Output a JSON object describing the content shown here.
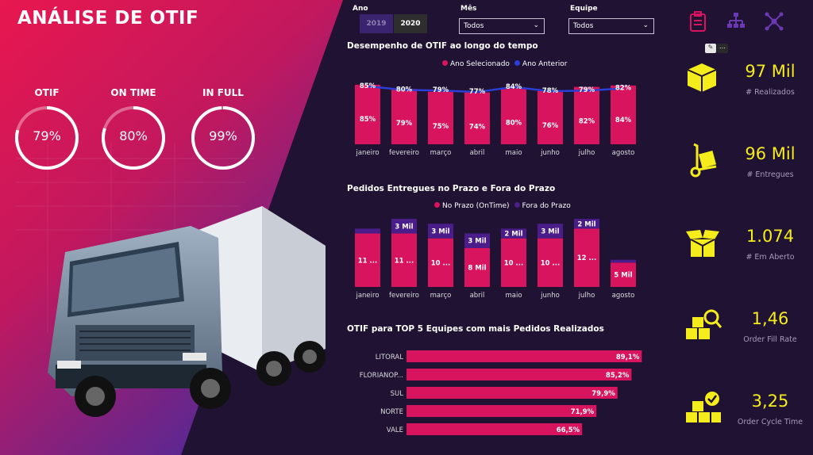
{
  "title": "ANÁLISE DE OTIF",
  "gauges": [
    {
      "label": "OTIF",
      "value": "79%",
      "pct": 0.79
    },
    {
      "label": "ON TIME",
      "value": "80%",
      "pct": 0.8
    },
    {
      "label": "IN FULL",
      "value": "99%",
      "pct": 0.99
    }
  ],
  "filters": {
    "ano_label": "Ano",
    "years": [
      "2019",
      "2020"
    ],
    "selected_year": "2020",
    "mes_label": "Mês",
    "mes_value": "Todos",
    "equipe_label": "Equipe",
    "equipe_value": "Todos"
  },
  "chart1": {
    "title": "Desempenho de OTIF ao longo do tempo",
    "legend": [
      "Ano Selecionado",
      "Ano Anterior"
    ]
  },
  "chart2": {
    "title": "Pedidos Entregues no Prazo e Fora do Prazo",
    "legend": [
      "No Prazo (OnTime)",
      "Fora do Prazo"
    ]
  },
  "chart3": {
    "title": "OTIF para TOP 5 Equipes com mais Pedidos Realizados"
  },
  "chart_data": [
    {
      "type": "bar",
      "title": "Desempenho de OTIF ao longo do tempo",
      "categories": [
        "janeiro",
        "fevereiro",
        "março",
        "abril",
        "maio",
        "junho",
        "julho",
        "agosto"
      ],
      "series": [
        {
          "name": "Ano Selecionado",
          "values": [
            85,
            79,
            75,
            74,
            80,
            76,
            82,
            84
          ],
          "labels": [
            "85%",
            "79%",
            "75%",
            "74%",
            "80%",
            "76%",
            "82%",
            "84%"
          ],
          "color": "#d8145e"
        },
        {
          "name": "Ano Anterior",
          "type": "line",
          "values": [
            85,
            80,
            79,
            77,
            84,
            78,
            79,
            82
          ],
          "labels": [
            "85%",
            "80%",
            "79%",
            "77%",
            "84%",
            "78%",
            "79%",
            "82%"
          ],
          "color": "#2b3fd6"
        }
      ],
      "ylim": [
        0,
        100
      ]
    },
    {
      "type": "bar",
      "title": "Pedidos Entregues no Prazo e Fora do Prazo",
      "stacked": true,
      "categories": [
        "janeiro",
        "fevereiro",
        "março",
        "abril",
        "maio",
        "junho",
        "julho",
        "agosto"
      ],
      "series": [
        {
          "name": "No Prazo (OnTime)",
          "values": [
            11,
            11,
            10,
            8,
            10,
            10,
            12,
            5
          ],
          "labels": [
            "11 ...",
            "11 ...",
            "10 ...",
            "8 Mil",
            "10 ...",
            "10 ...",
            "12 ...",
            "5 Mil"
          ],
          "color": "#d8145e"
        },
        {
          "name": "Fora do Prazo",
          "values": [
            1,
            3,
            3,
            3,
            2,
            3,
            2,
            0.6
          ],
          "labels": [
            "",
            "3 Mil",
            "3 Mil",
            "3 Mil",
            "2 Mil",
            "3 Mil",
            "2 Mil",
            ""
          ],
          "color": "#4a1d8a"
        }
      ],
      "ylim": [
        0,
        15
      ]
    },
    {
      "type": "bar",
      "orientation": "horizontal",
      "title": "OTIF para TOP 5 Equipes com mais Pedidos Realizados",
      "categories": [
        "LITORAL",
        "FLORIANOP...",
        "SUL",
        "NORTE",
        "VALE"
      ],
      "values": [
        89.1,
        85.2,
        79.9,
        71.9,
        66.5
      ],
      "labels": [
        "89,1%",
        "85,2%",
        "79,9%",
        "71,9%",
        "66,5%"
      ],
      "color": "#d8145e",
      "xlim": [
        0,
        100
      ]
    }
  ],
  "kpis": [
    {
      "value": "97 Mil",
      "caption": "# Realizados",
      "icon": "box-icon"
    },
    {
      "value": "96 Mil",
      "caption": "# Entregues",
      "icon": "hand-truck-icon"
    },
    {
      "value": "1.074",
      "caption": "# Em Aberto",
      "icon": "open-box-icon"
    },
    {
      "value": "1,46",
      "caption": "Order Fill Rate",
      "icon": "boxes-search-icon"
    },
    {
      "value": "3,25",
      "caption": "Order Cycle Time",
      "icon": "boxes-check-icon"
    }
  ],
  "colors": {
    "accent": "#d8145e",
    "purple": "#4a1d8a",
    "line": "#2b3fd6",
    "kpi": "#f5ec1c",
    "bg": "#1f1233"
  }
}
